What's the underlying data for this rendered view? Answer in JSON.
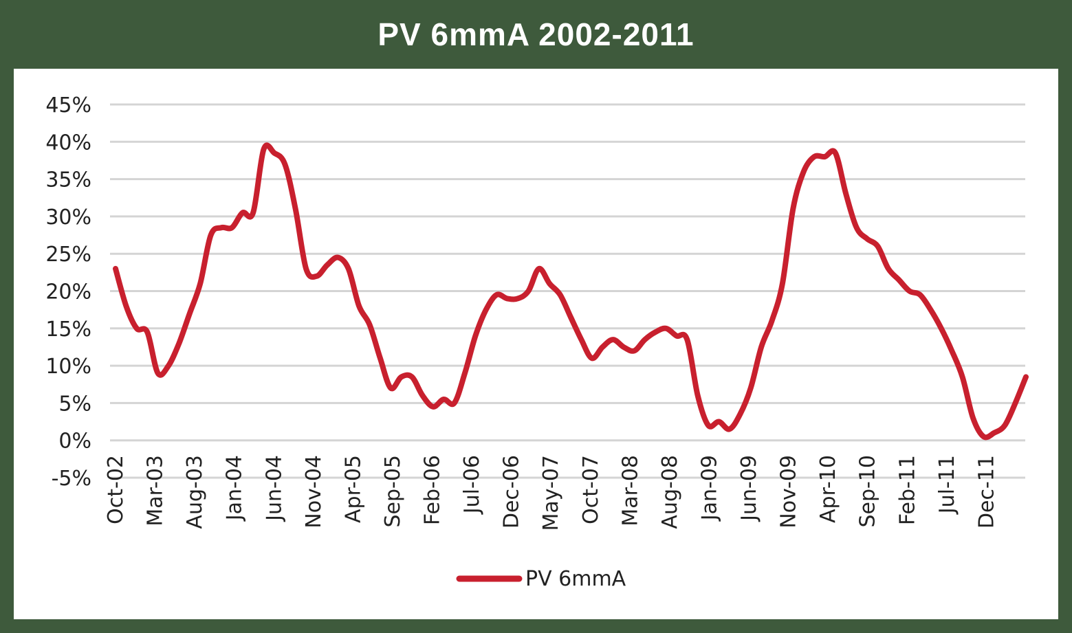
{
  "title": "PV 6mmA 2002-2011",
  "chart_data": {
    "type": "line",
    "title": "PV 6mmA 2002-2011",
    "xlabel": "",
    "ylabel": "",
    "ylim": [
      -5,
      45
    ],
    "y_ticks": [
      "45%",
      "40%",
      "35%",
      "30%",
      "25%",
      "20%",
      "15%",
      "10%",
      "5%",
      "0%",
      "-5%"
    ],
    "x_ticks": [
      "Oct-02",
      "Mar-03",
      "Aug-03",
      "Jan-04",
      "Jun-04",
      "Nov-04",
      "Apr-05",
      "Sep-05",
      "Feb-06",
      "Jul-06",
      "Dec-06",
      "May-07",
      "Oct-07",
      "Mar-08",
      "Aug-08",
      "Jan-09",
      "Jun-09",
      "Nov-09",
      "Apr-10",
      "Sep-10",
      "Feb-11",
      "Jul-11",
      "Dec-11"
    ],
    "grid": true,
    "legend_position": "bottom",
    "series": [
      {
        "name": "PV 6mmA",
        "color": "#c8202e",
        "values": [
          23,
          18,
          15,
          14.5,
          9,
          10,
          13,
          17,
          21,
          27.5,
          28.5,
          28.5,
          30.5,
          30.5,
          39,
          38.5,
          37,
          31,
          23,
          22,
          23.5,
          24.5,
          23,
          18,
          15.5,
          11,
          7,
          8.5,
          8.5,
          6,
          4.5,
          5.5,
          5,
          9,
          14,
          17.5,
          19.5,
          19,
          19,
          20,
          23,
          21,
          19.5,
          16.5,
          13.5,
          11,
          12.5,
          13.5,
          12.5,
          12,
          13.5,
          14.5,
          15,
          14,
          13.5,
          6,
          2,
          2.5,
          1.5,
          3.5,
          7,
          12.5,
          16,
          21,
          31,
          36,
          38,
          38,
          38.5,
          33,
          28.5,
          27,
          26,
          23,
          21.5,
          20,
          19.5,
          17.5,
          15,
          12,
          8.5,
          3,
          0.5,
          1,
          2,
          5,
          8.5
        ]
      }
    ]
  }
}
